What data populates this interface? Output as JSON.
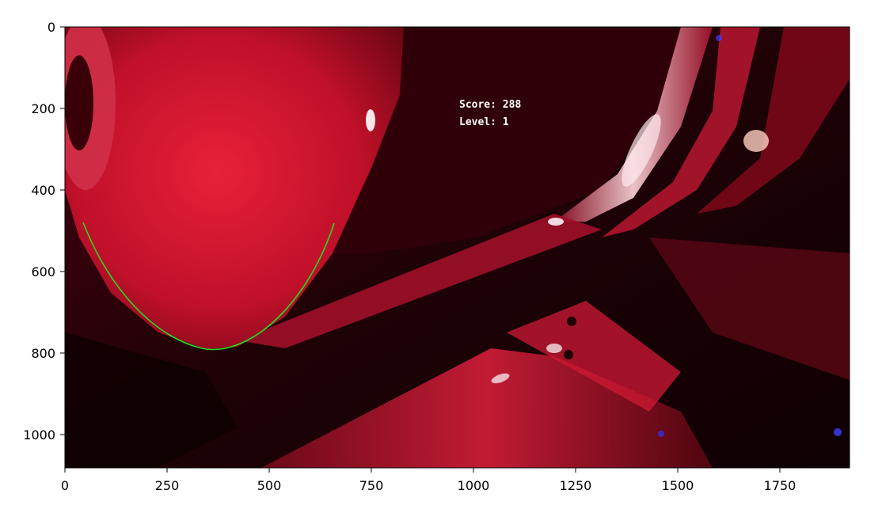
{
  "hud": {
    "score_label": "Score:",
    "score_value": "288",
    "level_label": "Level:",
    "level_value": "1"
  },
  "axes": {
    "x_ticks": [
      "0",
      "250",
      "500",
      "750",
      "1000",
      "1250",
      "1500",
      "1750"
    ],
    "y_ticks": [
      "0",
      "200",
      "400",
      "600",
      "800",
      "1000"
    ],
    "x_range": [
      0,
      1920
    ],
    "y_range": [
      1080,
      0
    ]
  },
  "scene": {
    "description_colors": {
      "primary_red": "#c8102e",
      "deep_red": "#5a0010",
      "shadow": "#140004",
      "highlight": "#ffe0e0",
      "curve_green": "#22dd22",
      "accent_blue": "#3a30ff"
    }
  }
}
